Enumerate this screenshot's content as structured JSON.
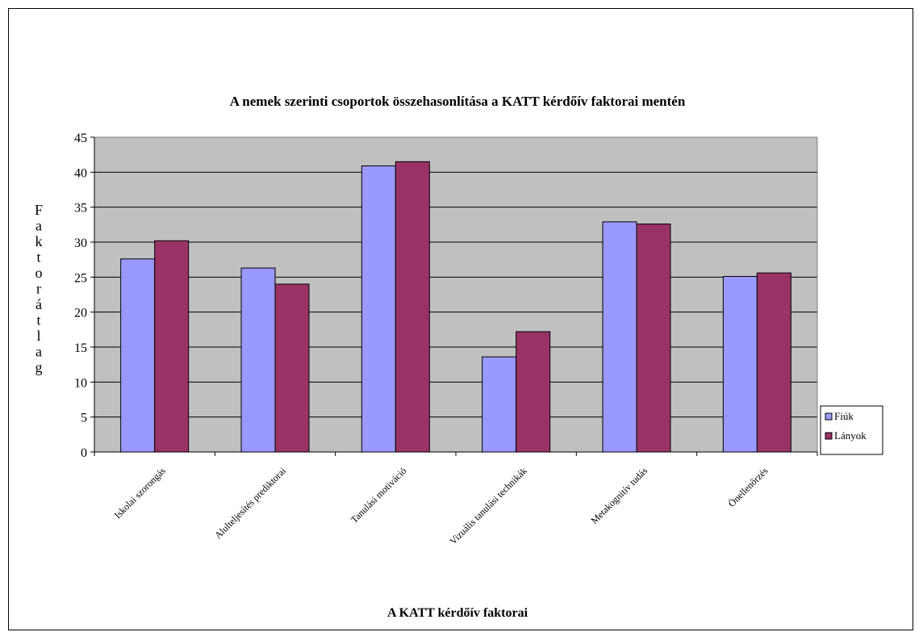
{
  "chart_data": {
    "type": "bar",
    "title": "A nemek szerinti csoportok összehasonlítása a KATT kérdőív faktorai mentén",
    "xlabel": "A KATT kérdőív faktorai",
    "ylabel": "Faktorátlag",
    "ylim": [
      0,
      45
    ],
    "yticks": [
      "0",
      "5",
      "10",
      "15",
      "20",
      "25",
      "30",
      "35",
      "40",
      "45"
    ],
    "grid": true,
    "legend_position": "right",
    "categories": [
      "Iskolai szorongás",
      "Alulteljesítés prediktorai",
      "Tanulási motiváció",
      "Vizuális tanulási technikák",
      "Metakognitív tudás",
      "Önellenőrzés"
    ],
    "series": [
      {
        "name": "Fiúk",
        "values": [
          27.6,
          26.3,
          40.9,
          13.6,
          32.9,
          25.1
        ]
      },
      {
        "name": "Lányok",
        "values": [
          30.2,
          24.0,
          41.5,
          17.2,
          32.6,
          25.6
        ]
      }
    ]
  },
  "colors": {
    "plot_background": "#c0c0c0",
    "series": [
      "#9999ff",
      "#993366"
    ]
  }
}
